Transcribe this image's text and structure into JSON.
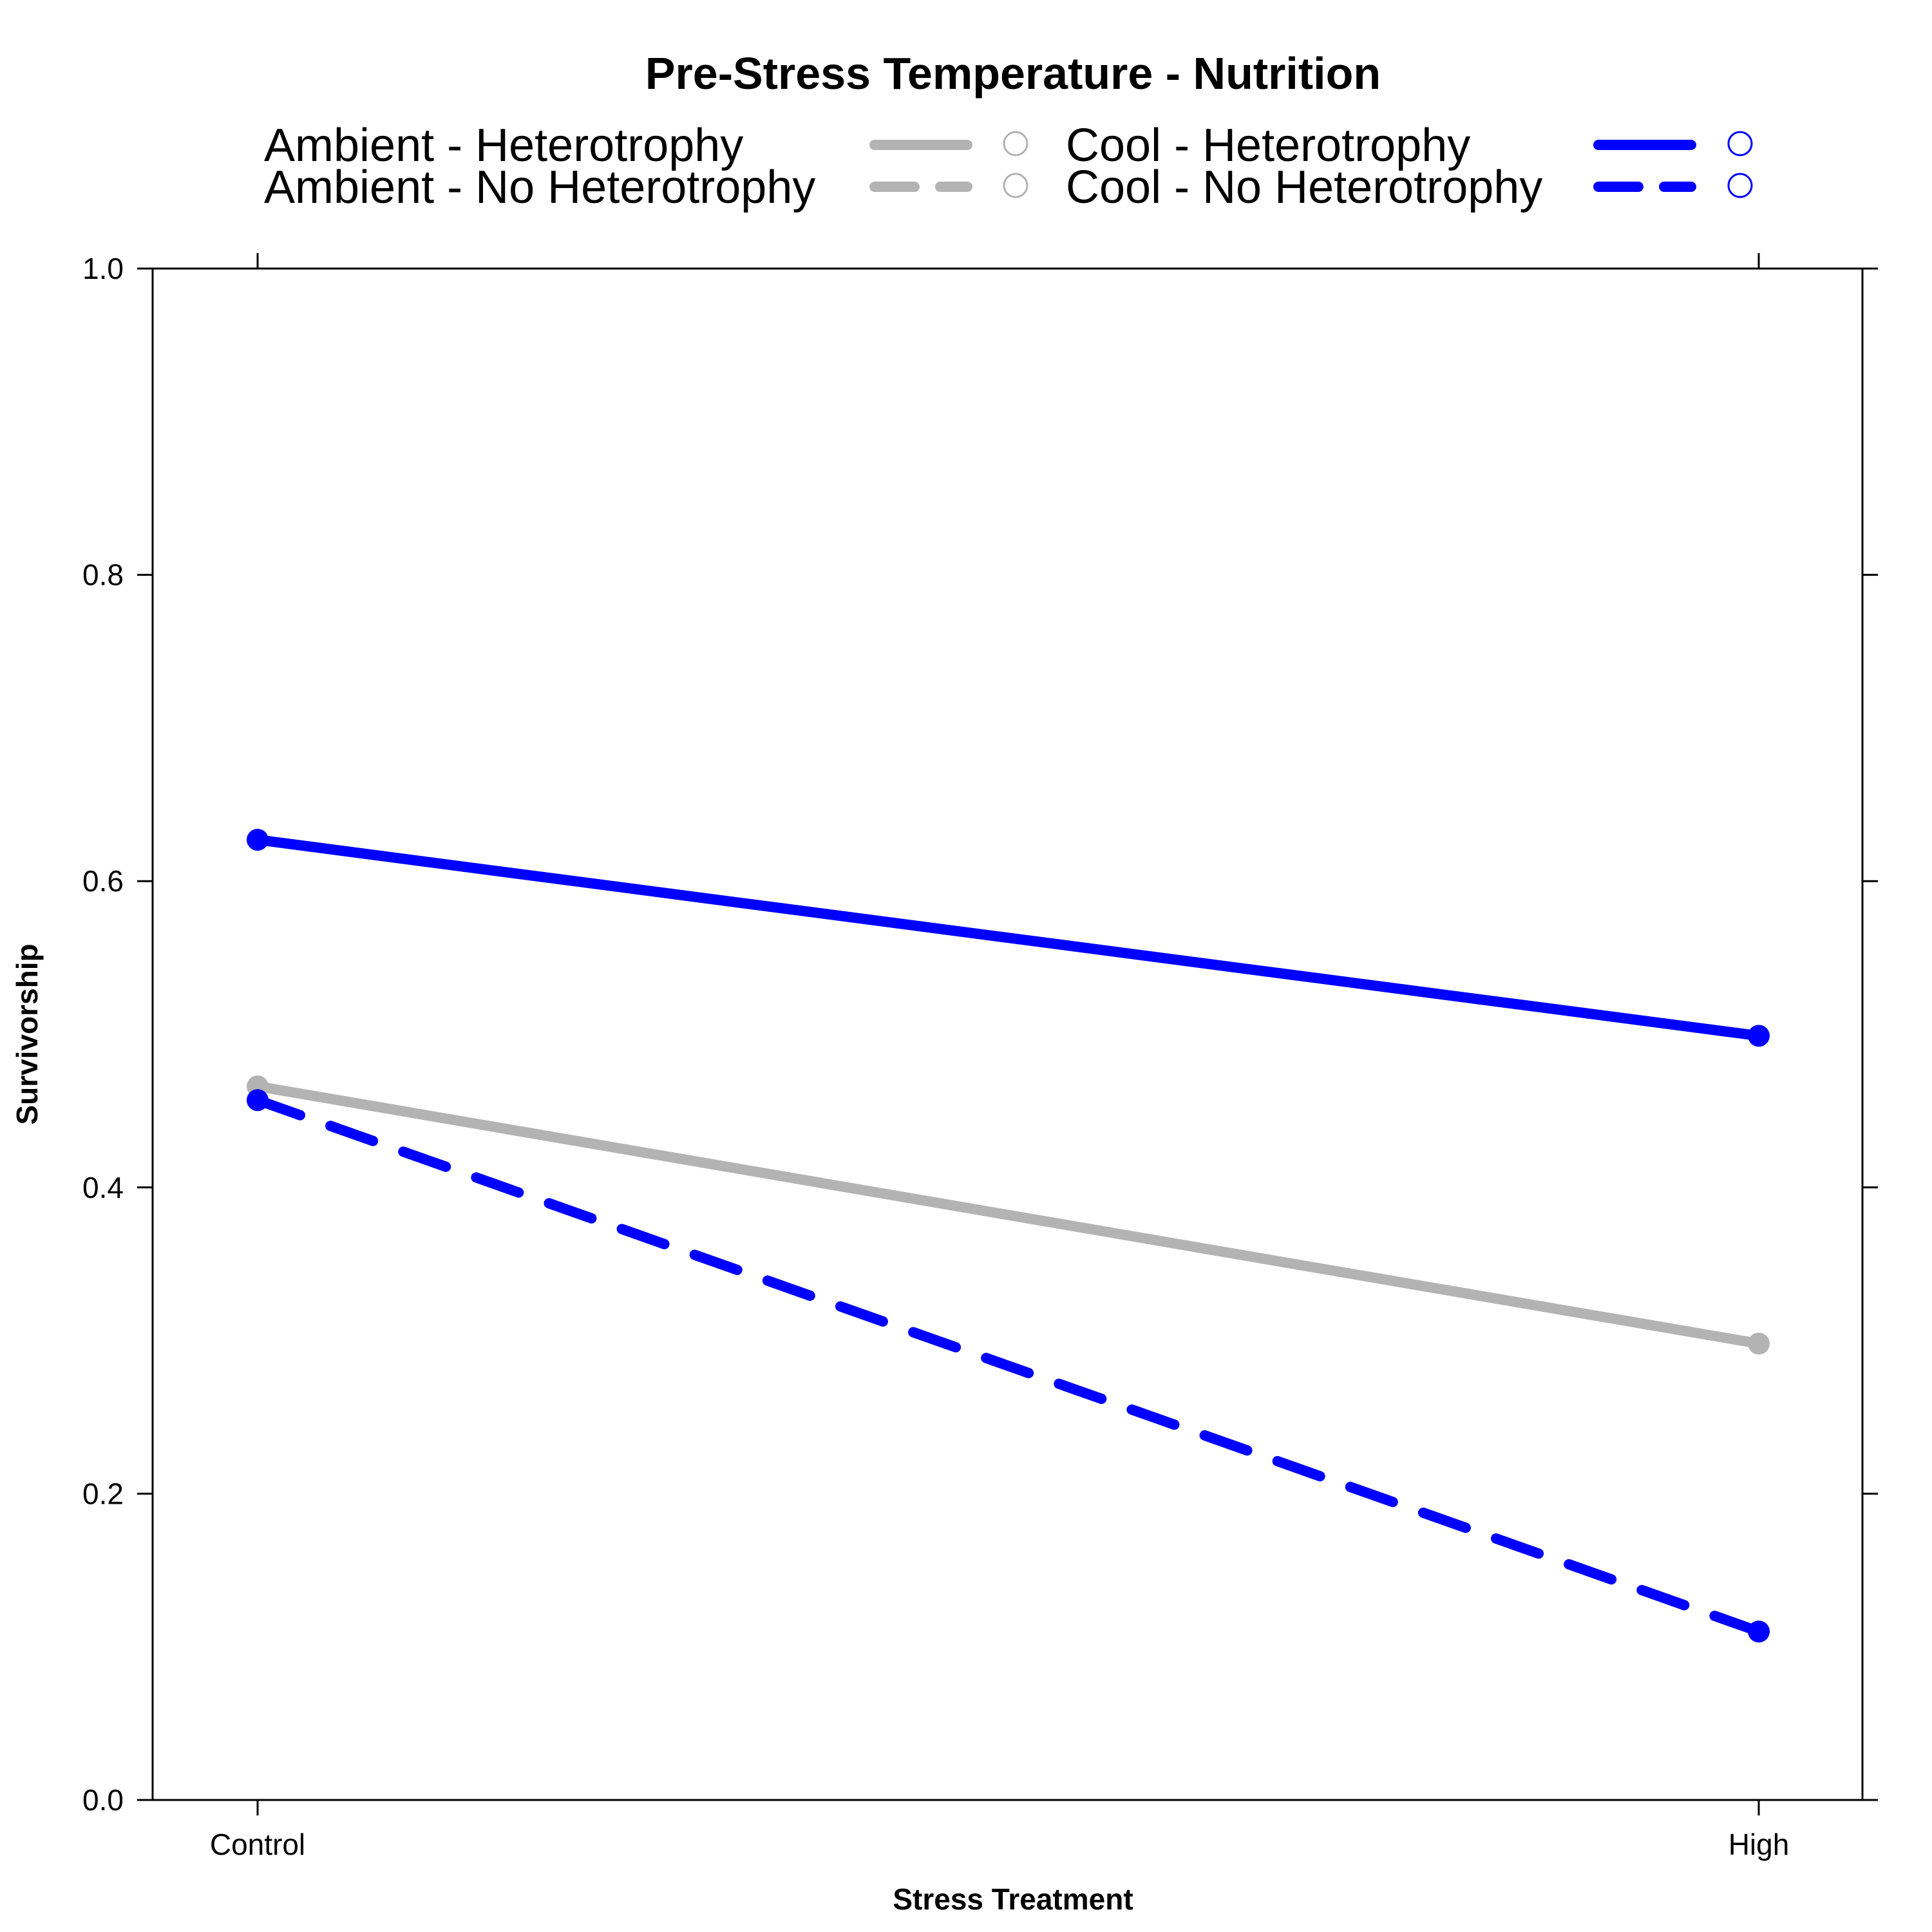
{
  "chart_data": {
    "type": "line",
    "title": "Pre-Stress Temperature - Nutrition",
    "xlabel": "Stress Treatment",
    "ylabel": "Survivorship",
    "categories": [
      "Control",
      "High"
    ],
    "ylim": [
      0.0,
      1.0
    ],
    "yticks": [
      "0.0",
      "0.2",
      "0.4",
      "0.6",
      "0.8",
      "1.0"
    ],
    "grid": false,
    "legend_position": "top",
    "series": [
      {
        "name": "Ambient - Heterotrophy",
        "values": [
          0.466,
          0.298
        ],
        "color": "#b3b3b3",
        "dash": "solid",
        "marker": "circle"
      },
      {
        "name": "Ambient - No Heterotrophy",
        "values": [
          0.457,
          0.11
        ],
        "color": "#b3b3b3",
        "dash": "dashed",
        "marker": "circle"
      },
      {
        "name": "Cool - Heterotrophy",
        "values": [
          0.627,
          0.499
        ],
        "color": "#0000ff",
        "dash": "solid",
        "marker": "circle"
      },
      {
        "name": "Cool - No Heterotrophy",
        "values": [
          0.457,
          0.11
        ],
        "color": "#0000ff",
        "dash": "dashed",
        "marker": "circle"
      }
    ]
  }
}
